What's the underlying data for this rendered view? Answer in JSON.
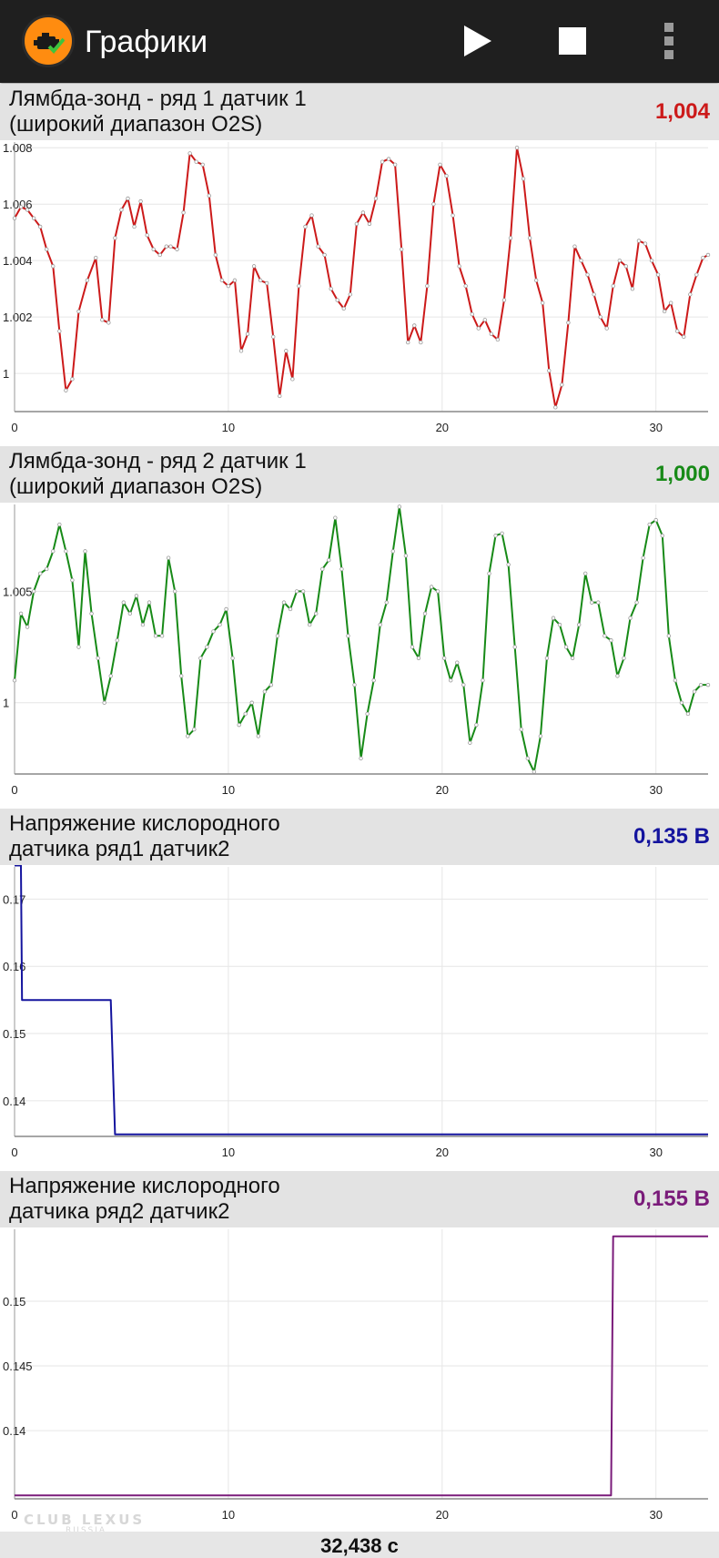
{
  "app": {
    "title": "Графики",
    "icons": {
      "app": "check-engine-icon",
      "play": "play-icon",
      "stop": "stop-icon",
      "menu": "more-vert-icon"
    }
  },
  "graphs": [
    {
      "title": "Лямбда-зонд - ряд 1 датчик 1\n(широкий диапазон O2S)",
      "value": "1,004",
      "color": "#cc1a1a",
      "chart_data": {
        "type": "line",
        "xlim": [
          0,
          32.438
        ],
        "ylim": [
          0.99865,
          1.0082
        ],
        "xticks": [
          "0",
          "10",
          "20",
          "30"
        ],
        "yticks": [
          "1",
          "1.002",
          "1.004",
          "1.006",
          "1.008"
        ],
        "grid": true,
        "series": [
          {
            "x": [
              0,
              0.3,
              0.6,
              0.9,
              1.2,
              1.5,
              1.8,
              2.1,
              2.4,
              2.7,
              3.0,
              3.4,
              3.8,
              4.1,
              4.4,
              4.7,
              5.0,
              5.3,
              5.6,
              5.9,
              6.2,
              6.5,
              6.8,
              7.1,
              7.3,
              7.6,
              7.9,
              8.2,
              8.5,
              8.8,
              9.1,
              9.4,
              9.7,
              10.0,
              10.3,
              10.6,
              10.9,
              11.2,
              11.5,
              11.8,
              12.1,
              12.4,
              12.7,
              13.0,
              13.3,
              13.6,
              13.9,
              14.2,
              14.5,
              14.8,
              15.1,
              15.4,
              15.7,
              16.0,
              16.3,
              16.6,
              16.9,
              17.2,
              17.5,
              17.8,
              18.1,
              18.4,
              18.7,
              19.0,
              19.3,
              19.6,
              19.9,
              20.2,
              20.5,
              20.8,
              21.1,
              21.4,
              21.7,
              22.0,
              22.3,
              22.6,
              22.9,
              23.2,
              23.5,
              23.8,
              24.1,
              24.4,
              24.7,
              25.0,
              25.3,
              25.6,
              25.9,
              26.2,
              26.5,
              26.8,
              27.1,
              27.4,
              27.7,
              28.0,
              28.3,
              28.6,
              28.9,
              29.2,
              29.5,
              29.8,
              30.1,
              30.4,
              30.7,
              31.0,
              31.3,
              31.6,
              31.9,
              32.2,
              32.438
            ],
            "y": [
              1.0055,
              1.0059,
              1.0058,
              1.0055,
              1.0052,
              1.0044,
              1.0038,
              1.0015,
              0.9994,
              0.9998,
              1.0022,
              1.0033,
              1.0041,
              1.0019,
              1.0018,
              1.0048,
              1.0058,
              1.0062,
              1.0052,
              1.0061,
              1.0049,
              1.0044,
              1.0042,
              1.0045,
              1.0045,
              1.0044,
              1.0057,
              1.0078,
              1.0075,
              1.0074,
              1.0063,
              1.0042,
              1.0033,
              1.0031,
              1.0033,
              1.0008,
              1.0014,
              1.0038,
              1.0033,
              1.0032,
              1.0013,
              0.9992,
              1.0008,
              0.9998,
              1.0031,
              1.0052,
              1.0056,
              1.0045,
              1.0042,
              1.003,
              1.0026,
              1.0023,
              1.0028,
              1.0053,
              1.0057,
              1.0053,
              1.0062,
              1.0075,
              1.0076,
              1.0074,
              1.0044,
              1.0011,
              1.0017,
              1.0011,
              1.0031,
              1.006,
              1.0074,
              1.007,
              1.0056,
              1.0038,
              1.0031,
              1.0021,
              1.0016,
              1.0019,
              1.0014,
              1.0012,
              1.0026,
              1.0048,
              1.008,
              1.0069,
              1.0048,
              1.0033,
              1.0025,
              1.0001,
              0.9988,
              0.9996,
              1.0018,
              1.0045,
              1.004,
              1.0035,
              1.0028,
              1.002,
              1.0016,
              1.0031,
              1.004,
              1.0038,
              1.003,
              1.0047,
              1.0046,
              1.004,
              1.0035,
              1.0022,
              1.0025,
              1.0015,
              1.0013,
              1.0028,
              1.0035,
              1.0041,
              1.0042
            ]
          }
        ]
      }
    },
    {
      "title": "Лямбда-зонд - ряд 2 датчик 1\n(широкий диапазон O2S)",
      "value": "1,000",
      "color": "#178a17",
      "chart_data": {
        "type": "line",
        "xlim": [
          0,
          32.438
        ],
        "ylim": [
          0.9968,
          1.0089
        ],
        "xticks": [
          "0",
          "10",
          "20",
          "30"
        ],
        "yticks": [
          "1",
          "1.005"
        ],
        "grid": true,
        "series": [
          {
            "x": [
              0,
              0.3,
              0.6,
              0.9,
              1.2,
              1.5,
              1.8,
              2.1,
              2.4,
              2.7,
              3.0,
              3.3,
              3.6,
              3.9,
              4.2,
              4.5,
              4.8,
              5.1,
              5.4,
              5.7,
              6.0,
              6.3,
              6.6,
              6.9,
              7.2,
              7.5,
              7.8,
              8.1,
              8.4,
              8.7,
              9.0,
              9.3,
              9.6,
              9.9,
              10.2,
              10.5,
              10.8,
              11.1,
              11.4,
              11.7,
              12.0,
              12.3,
              12.6,
              12.9,
              13.2,
              13.5,
              13.8,
              14.1,
              14.4,
              14.7,
              15.0,
              15.3,
              15.6,
              15.9,
              16.2,
              16.5,
              16.8,
              17.1,
              17.4,
              17.7,
              18.0,
              18.3,
              18.6,
              18.9,
              19.2,
              19.5,
              19.8,
              20.1,
              20.4,
              20.7,
              21.0,
              21.3,
              21.6,
              21.9,
              22.2,
              22.5,
              22.8,
              23.1,
              23.4,
              23.7,
              24.0,
              24.3,
              24.6,
              24.9,
              25.2,
              25.5,
              25.8,
              26.1,
              26.4,
              26.7,
              27.0,
              27.3,
              27.6,
              27.9,
              28.2,
              28.5,
              28.8,
              29.1,
              29.4,
              29.7,
              30.0,
              30.3,
              30.6,
              30.9,
              31.2,
              31.5,
              31.8,
              32.1,
              32.438
            ],
            "y": [
              1.001,
              1.004,
              1.0034,
              1.005,
              1.0058,
              1.006,
              1.0068,
              1.008,
              1.0068,
              1.0055,
              1.0025,
              1.0068,
              1.004,
              1.002,
              1.0,
              1.0012,
              1.0028,
              1.0045,
              1.004,
              1.0048,
              1.0035,
              1.0045,
              1.003,
              1.003,
              1.0065,
              1.005,
              1.0012,
              0.9985,
              0.9988,
              1.002,
              1.0025,
              1.0032,
              1.0035,
              1.0042,
              1.002,
              0.999,
              0.9995,
              1.0,
              0.9985,
              1.0005,
              1.0008,
              1.003,
              1.0045,
              1.0042,
              1.005,
              1.005,
              1.0035,
              1.004,
              1.006,
              1.0064,
              1.0083,
              1.006,
              1.003,
              1.0008,
              0.9975,
              0.9995,
              1.001,
              1.0035,
              1.0045,
              1.0068,
              1.0088,
              1.0066,
              1.0025,
              1.002,
              1.004,
              1.0052,
              1.005,
              1.002,
              1.001,
              1.0018,
              1.0008,
              0.9982,
              0.999,
              1.001,
              1.0058,
              1.0075,
              1.0076,
              1.0062,
              1.0025,
              0.9988,
              0.9975,
              0.9969,
              0.9985,
              1.002,
              1.0038,
              1.0035,
              1.0025,
              1.002,
              1.0035,
              1.0058,
              1.0045,
              1.0045,
              1.003,
              1.0028,
              1.0012,
              1.002,
              1.0038,
              1.0045,
              1.0065,
              1.008,
              1.0082,
              1.0075,
              1.003,
              1.001,
              1.0,
              0.9995,
              1.0005,
              1.0008,
              1.0008
            ]
          }
        ]
      }
    },
    {
      "title": "Напряжение кислородного\nдатчика ряд1 датчик2",
      "value": "0,135 В",
      "color": "#14149e",
      "chart_data": {
        "type": "line",
        "xlim": [
          0,
          32.438
        ],
        "ylim": [
          0.1347,
          0.1748
        ],
        "xticks": [
          "0",
          "10",
          "20",
          "30"
        ],
        "yticks": [
          "0.14",
          "0.15",
          "0.16",
          "0.17"
        ],
        "grid": true,
        "series": [
          {
            "x": [
              0,
              0.3,
              0.35,
              4.5,
              4.7,
              32.438
            ],
            "y": [
              0.175,
              0.175,
              0.155,
              0.155,
              0.135,
              0.135
            ]
          }
        ]
      }
    },
    {
      "title": "Напряжение кислородного\nдатчика ряд2 датчик2",
      "value": "0,155 В",
      "color": "#7a1b7a",
      "chart_data": {
        "type": "line",
        "xlim": [
          0,
          32.438
        ],
        "ylim": [
          0.13474,
          0.15555
        ],
        "xticks": [
          "0",
          "10",
          "20",
          "30"
        ],
        "yticks": [
          "0.14",
          "0.145",
          "0.15"
        ],
        "grid": true,
        "series": [
          {
            "x": [
              0,
              27.9,
              28.0,
              32.438
            ],
            "y": [
              0.135,
              0.135,
              0.155,
              0.155
            ]
          }
        ]
      }
    }
  ],
  "footer": {
    "elapsed": "32,438 с"
  },
  "watermark": {
    "line1": "CLUB LEXUS",
    "line2": "RUSSIA"
  }
}
